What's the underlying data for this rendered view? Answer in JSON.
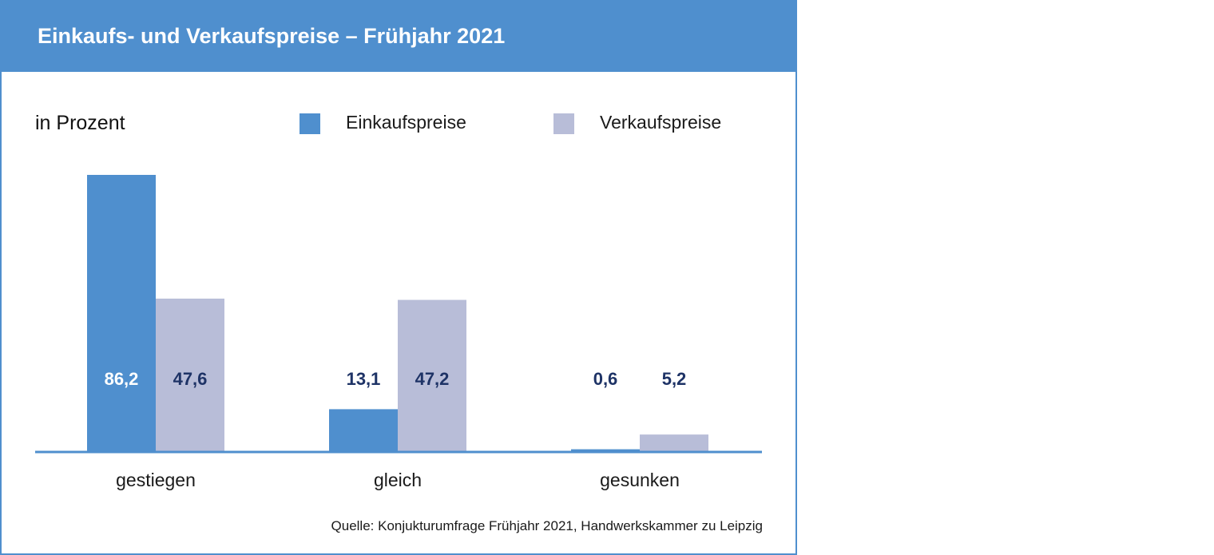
{
  "header": {
    "title": "Einkaufs- und Verkaufspreise – Frühjahr 2021"
  },
  "unit_label": "in Prozent",
  "source": "Quelle: Konjukturumfrage Frühjahr 2021, Handwerkskammer zu Leipzig",
  "colors": {
    "header": "#4f8fce",
    "einkauf": "#4f8fce",
    "verkauf": "#b8bdd8",
    "value_dark": "#1e3366",
    "value_light": "#ffffff",
    "axis": "#4f8fce"
  },
  "chart_data": {
    "type": "bar",
    "title": "Einkaufs- und Verkaufspreise – Frühjahr 2021",
    "ylabel": "in Prozent",
    "xlabel": "",
    "categories": [
      "gestiegen",
      "gleich",
      "gesunken"
    ],
    "series": [
      {
        "name": "Einkaufspreise",
        "values": [
          86.2,
          13.1,
          0.6
        ],
        "labels": [
          "86,2",
          "13,1",
          "0,6"
        ]
      },
      {
        "name": "Verkaufspreise",
        "values": [
          47.6,
          47.2,
          5.2
        ],
        "labels": [
          "47,6",
          "47,2",
          "5,2"
        ]
      }
    ],
    "ylim": [
      0,
      86.2
    ],
    "grid": false,
    "legend": "top"
  }
}
